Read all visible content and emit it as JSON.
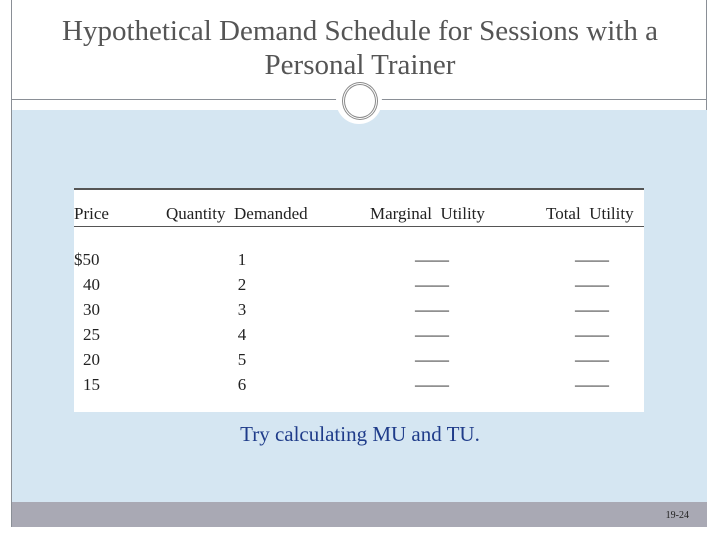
{
  "title": "Hypothetical Demand Schedule for Sessions with a Personal Trainer",
  "table": {
    "headers": [
      "Price",
      "Quantity  Demanded",
      "Marginal  Utility",
      "Total  Utility"
    ],
    "rows": [
      {
        "price": "$50",
        "qty": "1",
        "mu": "——",
        "tu": "——"
      },
      {
        "price": "40",
        "qty": "2",
        "mu": "——",
        "tu": "——"
      },
      {
        "price": "30",
        "qty": "3",
        "mu": "——",
        "tu": "——"
      },
      {
        "price": "25",
        "qty": "4",
        "mu": "——",
        "tu": "——"
      },
      {
        "price": "20",
        "qty": "5",
        "mu": "——",
        "tu": "——"
      },
      {
        "price": "15",
        "qty": "6",
        "mu": "——",
        "tu": "——"
      }
    ]
  },
  "prompt": "Try calculating MU and TU.",
  "page_number": "19-24"
}
